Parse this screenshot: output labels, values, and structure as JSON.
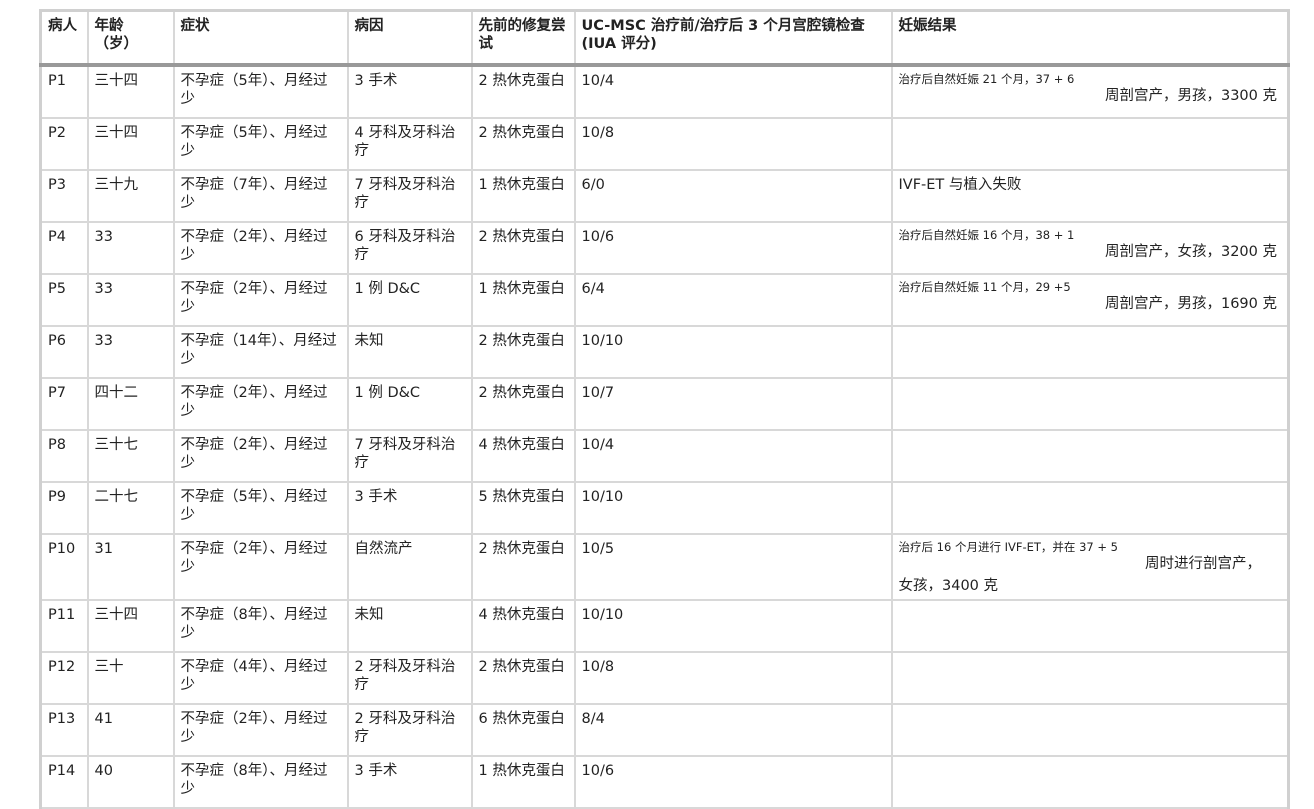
{
  "headers": [
    "病人",
    "年龄\n（岁）",
    "症状",
    "病因",
    "先前的修复尝试",
    "UC-MSC 治疗前/治疗后 3 个月宫腔镜检查 (IUA 评分)",
    "妊娠结果"
  ],
  "header_parts": {
    "age_1": "年龄",
    "age_2": "（岁）"
  },
  "rows": [
    {
      "patient": "P1",
      "age": "三十四",
      "symptoms": "不孕症（5年）、月经过少",
      "etiology": "3 手术",
      "prior": "2 热休克蛋白",
      "iua": "10/4",
      "outcome_1": "治疗后自然妊娠 21 个月，37 + 6",
      "outcome_2": "周剖宫产，男孩，3300 克"
    },
    {
      "patient": "P2",
      "age": "三十四",
      "symptoms": "不孕症（5年）、月经过少",
      "etiology": "4 牙科及牙科治疗",
      "prior": "2 热休克蛋白",
      "iua": "10/8",
      "outcome": ""
    },
    {
      "patient": "P3",
      "age": "三十九",
      "symptoms": "不孕症（7年）、月经过少",
      "etiology": "7 牙科及牙科治疗",
      "prior": "1 热休克蛋白",
      "iua": "6/0",
      "outcome": "IVF-ET 与植入失败"
    },
    {
      "patient": "P4",
      "age": "33",
      "symptoms": "不孕症（2年）、月经过少",
      "etiology": "6 牙科及牙科治疗",
      "prior": "2 热休克蛋白",
      "iua": "10/6",
      "outcome_1": "治疗后自然妊娠 16 个月，38 + 1",
      "outcome_2": "周剖宫产，女孩，3200 克"
    },
    {
      "patient": "P5",
      "age": "33",
      "symptoms": "不孕症（2年）、月经过少",
      "etiology": "1 例 D&C",
      "prior": "1 热休克蛋白",
      "iua": "6/4",
      "outcome_1": "治疗后自然妊娠 11 个月，29 +5",
      "outcome_2": "周剖宫产，男孩，1690 克"
    },
    {
      "patient": "P6",
      "age": "33",
      "symptoms": "不孕症（14年）、月经过少",
      "etiology": "未知",
      "prior": "2 热休克蛋白",
      "iua": "10/10",
      "outcome": ""
    },
    {
      "patient": "P7",
      "age": "四十二",
      "symptoms": "不孕症（2年）、月经过少",
      "etiology": "1 例 D&C",
      "prior": "2 热休克蛋白",
      "iua": "10/7",
      "outcome": ""
    },
    {
      "patient": "P8",
      "age": "三十七",
      "symptoms": "不孕症（2年）、月经过少",
      "etiology": "7 牙科及牙科治疗",
      "prior": "4 热休克蛋白",
      "iua": "10/4",
      "outcome": ""
    },
    {
      "patient": "P9",
      "age": "二十七",
      "symptoms": "不孕症（5年）、月经过少",
      "etiology": "3 手术",
      "prior": "5 热休克蛋白",
      "iua": "10/10",
      "outcome": ""
    },
    {
      "patient": "P10",
      "age": "31",
      "symptoms": "不孕症（2年）、月经过少",
      "etiology": "自然流产",
      "prior": "2 热休克蛋白",
      "iua": "10/5",
      "outcome_1": "治疗后 16 个月进行 IVF-ET，并在 37 + 5",
      "outcome_2": "周时进行剖宫产，",
      "outcome_3": "女孩，3400 克"
    },
    {
      "patient": "P11",
      "age": "三十四",
      "symptoms": "不孕症（8年）、月经过少",
      "etiology": "未知",
      "prior": "4 热休克蛋白",
      "iua": "10/10",
      "outcome": ""
    },
    {
      "patient": "P12",
      "age": "三十",
      "symptoms": "不孕症（4年）、月经过少",
      "etiology": "2 牙科及牙科治疗",
      "prior": "2 热休克蛋白",
      "iua": "10/8",
      "outcome": ""
    },
    {
      "patient": "P13",
      "age": "41",
      "symptoms": "不孕症（2年）、月经过少",
      "etiology": "2 牙科及牙科治疗",
      "prior": "6 热休克蛋白",
      "iua": "8/4",
      "outcome": ""
    },
    {
      "patient": "P14",
      "age": "40",
      "symptoms": "不孕症（8年）、月经过少",
      "etiology": "3 手术",
      "prior": "1 热休克蛋白",
      "iua": "10/6",
      "outcome": ""
    }
  ]
}
